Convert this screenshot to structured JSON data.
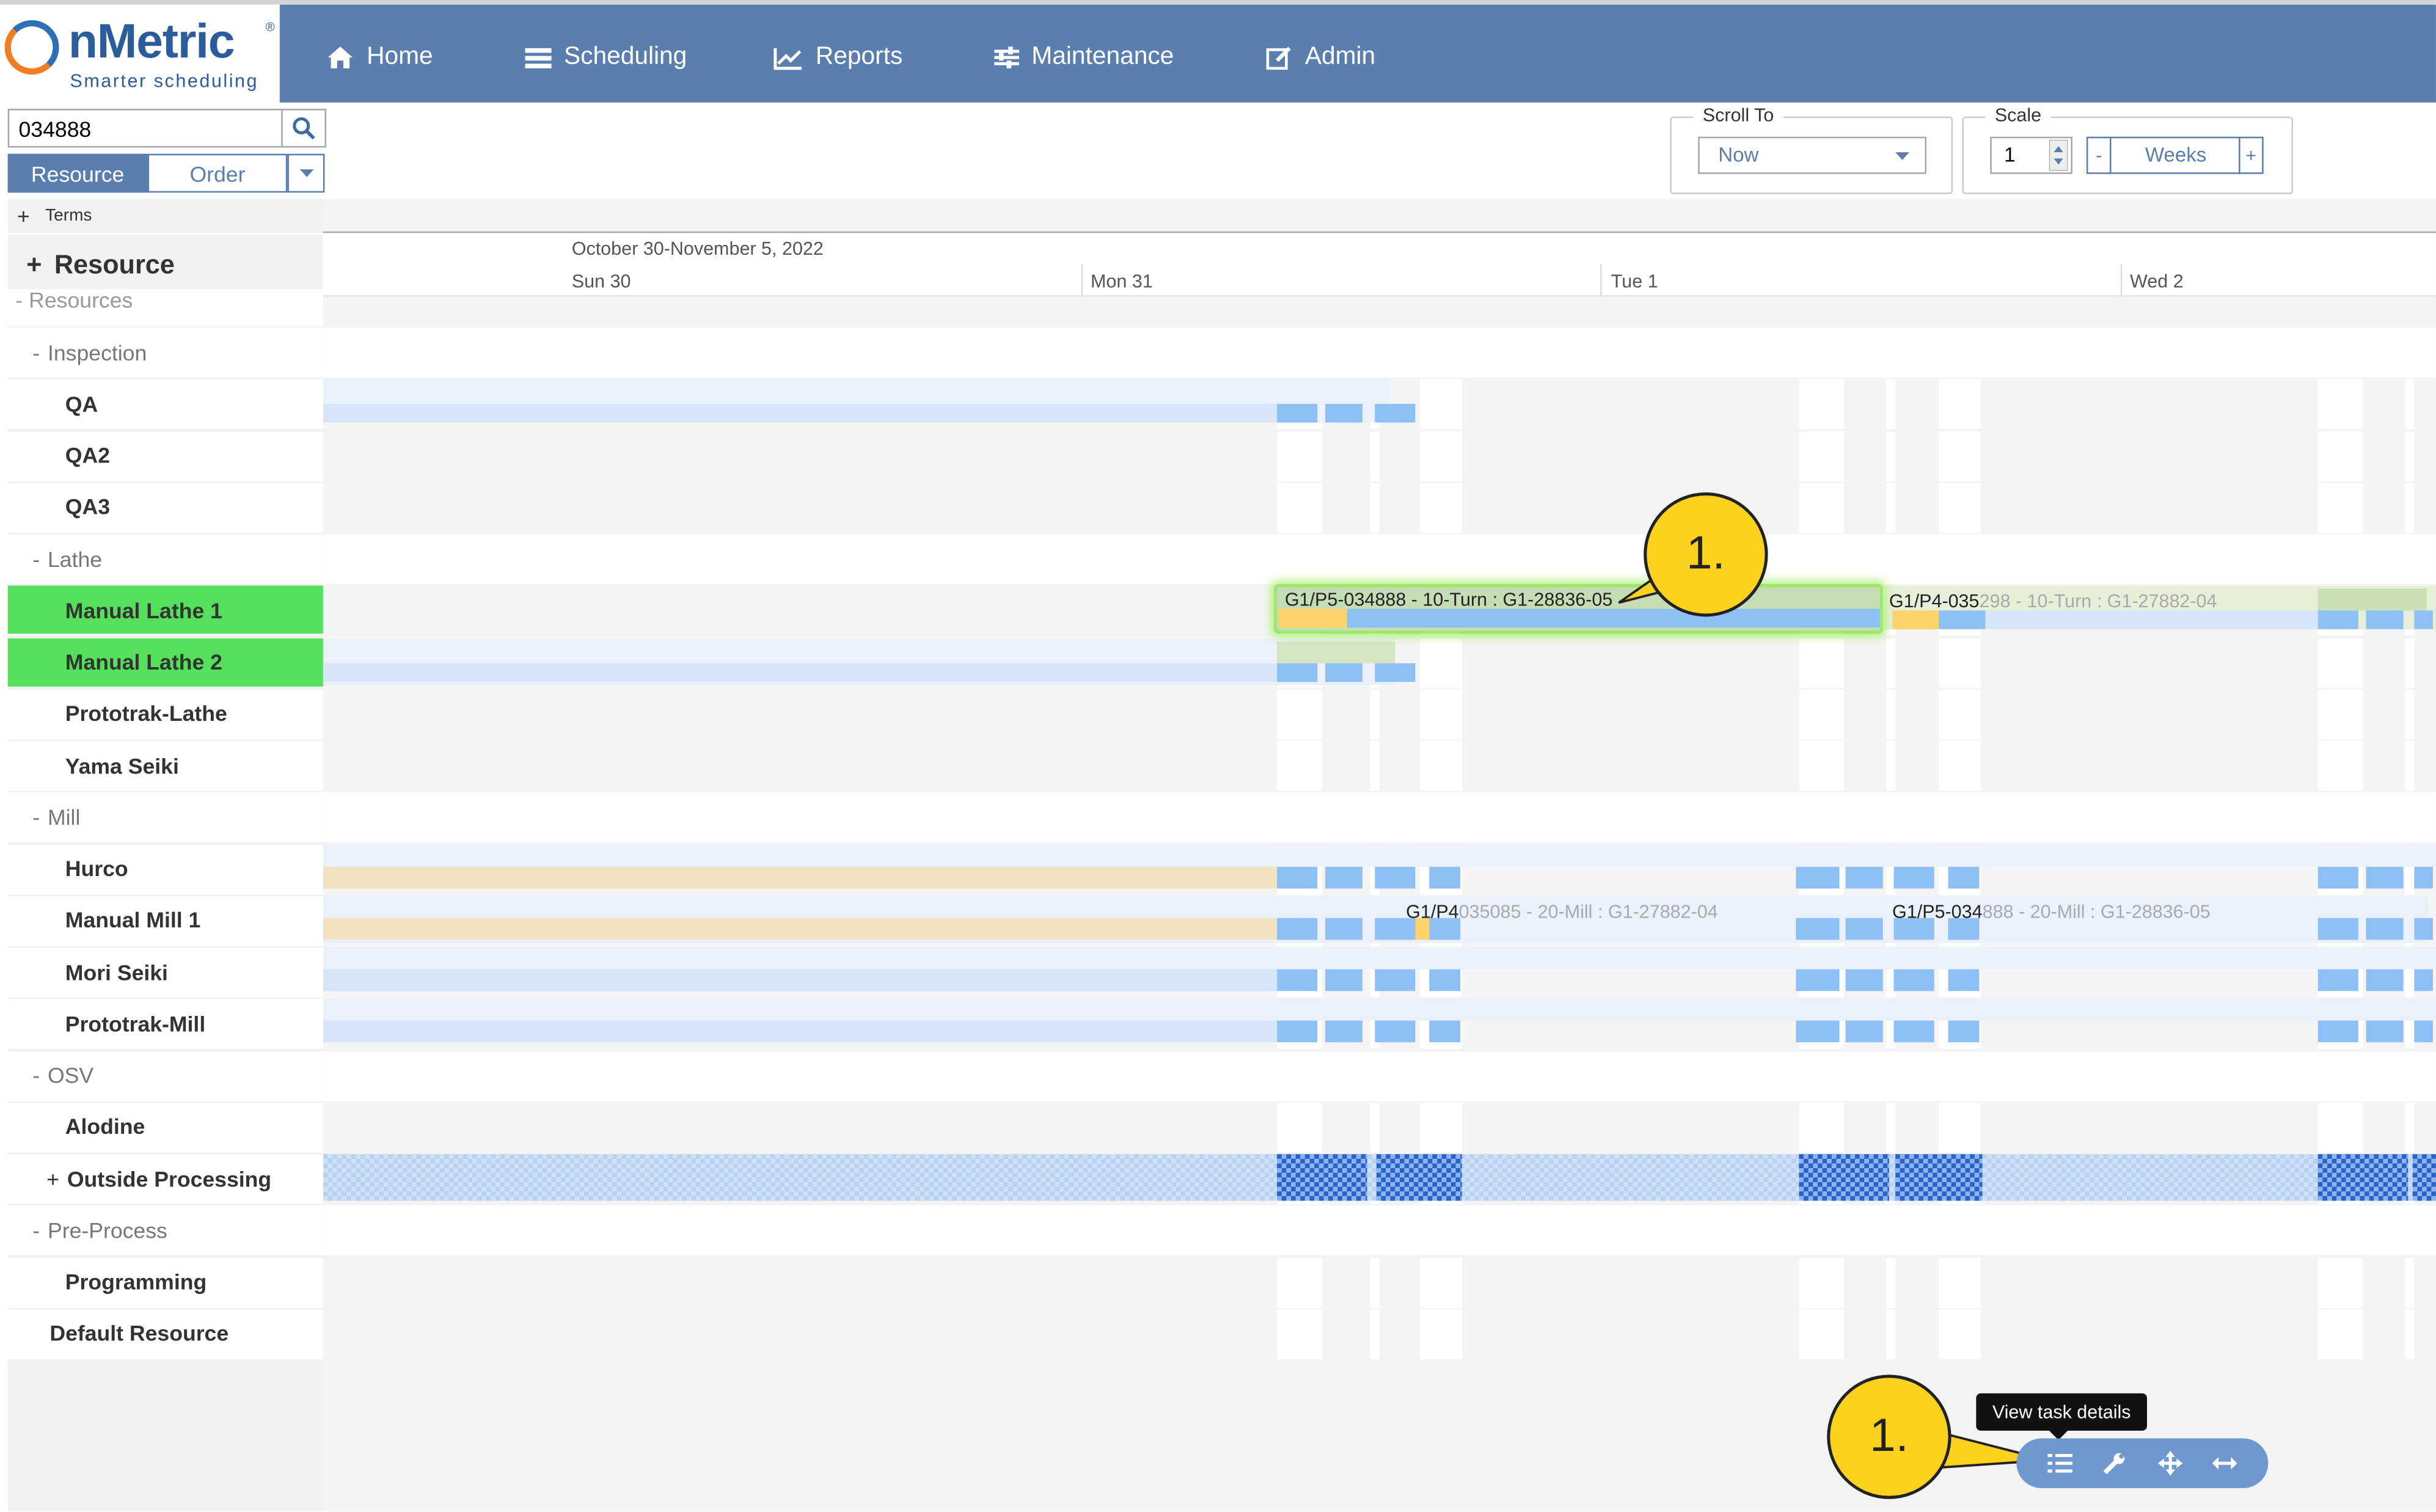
{
  "app": {
    "brand": "nMetric",
    "reg_mark": "®",
    "tagline": "Smarter scheduling"
  },
  "nav": {
    "items": [
      {
        "label": "Home",
        "icon": "home-icon"
      },
      {
        "label": "Scheduling",
        "icon": "list-icon"
      },
      {
        "label": "Reports",
        "icon": "chart-icon"
      },
      {
        "label": "Maintenance",
        "icon": "sliders-icon"
      },
      {
        "label": "Admin",
        "icon": "edit-icon"
      }
    ]
  },
  "search": {
    "value": "034888"
  },
  "view_toggle": {
    "resource_label": "Resource",
    "order_label": "Order"
  },
  "terms": {
    "prefix": "+",
    "label": "Terms"
  },
  "resource_header": {
    "prefix": "+",
    "label": "Resource"
  },
  "tree": {
    "partial_top": "- Resources",
    "rows": [
      {
        "label": "Inspection",
        "prefix": "-",
        "kind": "group"
      },
      {
        "label": "QA",
        "kind": "res"
      },
      {
        "label": "QA2",
        "kind": "res"
      },
      {
        "label": "QA3",
        "kind": "res"
      },
      {
        "label": "Lathe",
        "prefix": "-",
        "kind": "group"
      },
      {
        "label": "Manual Lathe 1",
        "kind": "res",
        "selected": true
      },
      {
        "label": "Manual Lathe 2",
        "kind": "res",
        "selected": true
      },
      {
        "label": "Prototrak-Lathe",
        "kind": "res"
      },
      {
        "label": "Yama Seiki",
        "kind": "res"
      },
      {
        "label": "Mill",
        "prefix": "-",
        "kind": "group"
      },
      {
        "label": "Hurco",
        "kind": "res"
      },
      {
        "label": "Manual Mill 1",
        "kind": "res"
      },
      {
        "label": "Mori Seiki",
        "kind": "res"
      },
      {
        "label": "Prototrak-Mill",
        "kind": "res"
      },
      {
        "label": "OSV",
        "prefix": "-",
        "kind": "group"
      },
      {
        "label": "Alodine",
        "kind": "res"
      },
      {
        "label": "Outside Processing",
        "prefix": "+",
        "kind": "res"
      },
      {
        "label": "Pre-Process",
        "prefix": "-",
        "kind": "group"
      },
      {
        "label": "Programming",
        "kind": "res"
      },
      {
        "label": "Default Resource",
        "kind": "res"
      }
    ]
  },
  "scroll_to": {
    "legend": "Scroll To",
    "value": "Now"
  },
  "scale": {
    "legend": "Scale",
    "value": "1",
    "minus": "-",
    "unit": "Weeks",
    "plus": "+"
  },
  "timeline": {
    "range": "October 30-November 5, 2022",
    "days": [
      "Sun 30",
      "Mon 31",
      "Tue 1",
      "Wed 2"
    ]
  },
  "tasks": {
    "lathe1_main": "G1/P5-034888 - 10-Turn : G1-28836-05",
    "lathe1_next_a": "G1/P4-035",
    "lathe1_next_b": "298 - 10-Turn : G1-27882-04",
    "mill1_a_a": "G1/P4",
    "mill1_a_b": "035085 - 20-Mill : G1-27882-04",
    "mill1_b_a": "G1/P5-034",
    "mill1_b_b": "888 - 20-Mill : G1-28836-05"
  },
  "callouts": {
    "top": "1.",
    "bottom": "1."
  },
  "tooltip": {
    "label": "View task details"
  },
  "colors": {
    "header": "#5a7fae",
    "selected": "#55e05c",
    "bar_blue": "#8fc0f5",
    "bar_tan": "#f2e2c0",
    "bar_orange": "#fcd46a",
    "callout": "#fcd21e"
  }
}
